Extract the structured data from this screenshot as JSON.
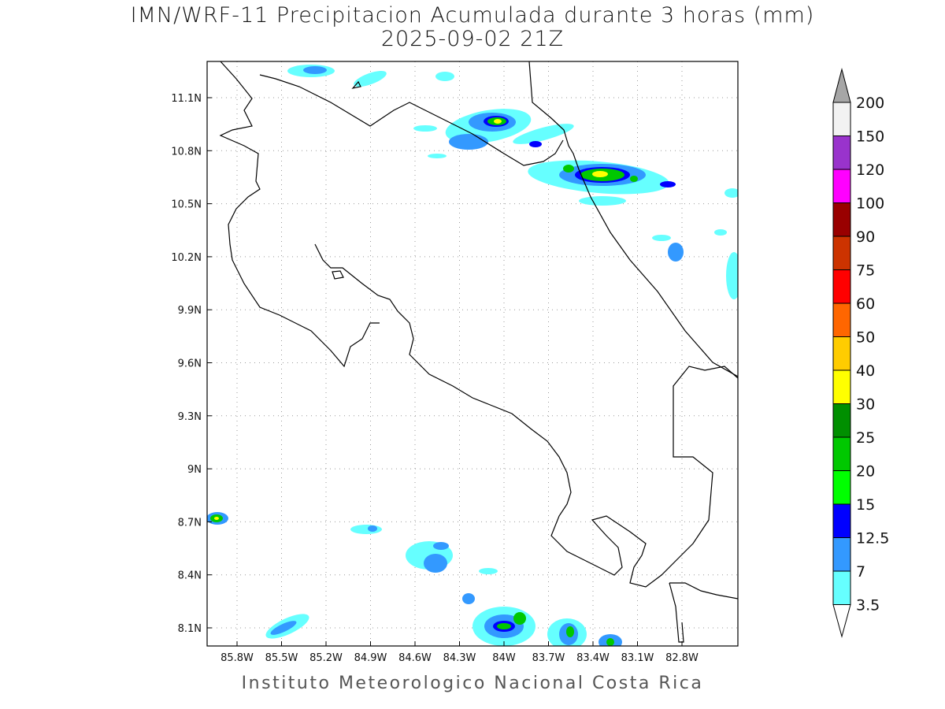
{
  "title": {
    "line1": "IMN/WRF-11 Precipitacion Acumulada durante 3 horas (mm)",
    "line2": "2025-09-02 21Z"
  },
  "footer": "Instituto Meteorologico Nacional Costa Rica",
  "map": {
    "lat_labels": [
      "11.1N",
      "10.8N",
      "10.5N",
      "10.2N",
      "9.9N",
      "9.6N",
      "9.3N",
      "9N",
      "8.7N",
      "8.4N",
      "8.1N"
    ],
    "lon_labels": [
      "85.8W",
      "85.5W",
      "85.2W",
      "84.9W",
      "84.6W",
      "84.3W",
      "84W",
      "83.7W",
      "83.4W",
      "83.1W",
      "82.8W"
    ]
  },
  "colorbar": {
    "labels": [
      "200",
      "150",
      "120",
      "100",
      "90",
      "75",
      "60",
      "50",
      "40",
      "30",
      "25",
      "20",
      "15",
      "12.5",
      "7",
      "3.5"
    ],
    "colors": [
      "#f2f2f2",
      "#9933cc",
      "#ff00ff",
      "#990000",
      "#cc3300",
      "#ff0000",
      "#ff6600",
      "#ffcc00",
      "#ffff00",
      "#008f00",
      "#00c800",
      "#00ff00",
      "#0000ff",
      "#3399ff",
      "#66ffff"
    ],
    "top_arrow_color": "#a6a6a6",
    "bottom_arrow_color": "#ffffff"
  }
}
